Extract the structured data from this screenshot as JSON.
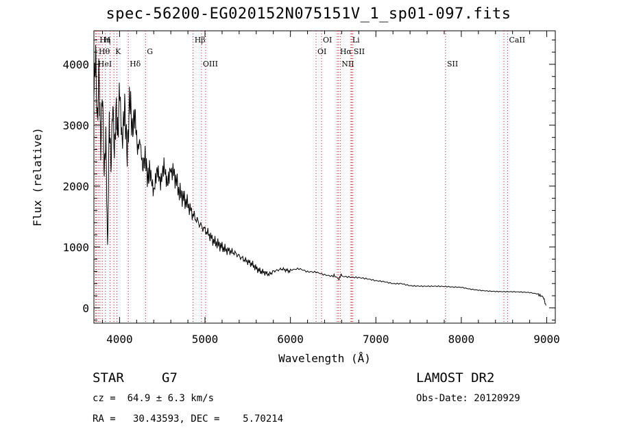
{
  "chart_data": {
    "type": "line",
    "title": "spec-56200-EG020152N075151V_1_sp01-097.fits",
    "xlabel": "Wavelength (Å)",
    "ylabel": "Flux (relative)",
    "xlim": [
      3700,
      9100
    ],
    "ylim": [
      -250,
      4550
    ],
    "x_ticks": [
      4000,
      5000,
      6000,
      7000,
      8000,
      9000
    ],
    "y_ticks": [
      0,
      1000,
      2000,
      3000,
      4000
    ],
    "series": [
      {
        "x": [
          3700,
          3720,
          3740,
          3760,
          3780,
          3800,
          3820,
          3840,
          3860,
          3880,
          3900,
          3920,
          3940,
          3960,
          3980,
          4000,
          4030,
          4060,
          4090,
          4120,
          4150,
          4180,
          4210,
          4240,
          4270,
          4300,
          4330,
          4360,
          4400,
          4440,
          4480,
          4520,
          4560,
          4600,
          4650,
          4700,
          4750,
          4800,
          4850,
          4900,
          4950,
          5000,
          5050,
          5100,
          5150,
          5200,
          5250,
          5300,
          5350,
          5400,
          5450,
          5500,
          5550,
          5600,
          5650,
          5700,
          5750,
          5800,
          5850,
          5900,
          5950,
          6000,
          6100,
          6200,
          6300,
          6400,
          6500,
          6563,
          6600,
          6700,
          6800,
          6900,
          7000,
          7100,
          7200,
          7300,
          7400,
          7500,
          7600,
          7700,
          7800,
          7900,
          8000,
          8100,
          8200,
          8300,
          8400,
          8500,
          8600,
          8700,
          8800,
          8900,
          8960,
          8990
        ],
        "y": [
          3500,
          4200,
          3000,
          3900,
          2600,
          3600,
          2200,
          2800,
          950,
          3100,
          2300,
          3400,
          2500,
          3300,
          2800,
          3600,
          2700,
          3300,
          2500,
          3500,
          2900,
          3200,
          2600,
          2750,
          2300,
          2500,
          2100,
          2300,
          1900,
          2200,
          2000,
          2400,
          2100,
          2300,
          2150,
          1900,
          1800,
          1700,
          1550,
          1450,
          1350,
          1280,
          1200,
          1100,
          1050,
          1000,
          950,
          930,
          900,
          850,
          800,
          760,
          720,
          650,
          600,
          580,
          550,
          600,
          620,
          640,
          620,
          600,
          620,
          580,
          590,
          560,
          540,
          480,
          540,
          510,
          490,
          460,
          430,
          420,
          400,
          410,
          380,
          370,
          360,
          350,
          340,
          330,
          330,
          310,
          300,
          290,
          280,
          270,
          260,
          250,
          240,
          220,
          180,
          40
        ]
      }
    ],
    "line_labels": [
      {
        "x": 3750,
        "text": "Hη",
        "row": 1
      },
      {
        "x": 3800,
        "text": "H",
        "row": 1
      },
      {
        "x": 4861,
        "text": "Hβ",
        "row": 1
      },
      {
        "x": 6364,
        "text": "OI",
        "row": 1
      },
      {
        "x": 6708,
        "text": "Li",
        "row": 1
      },
      {
        "x": 8542,
        "text": "CaII",
        "row": 1
      },
      {
        "x": 3740,
        "text": "Hθ",
        "row": 2
      },
      {
        "x": 3934,
        "text": "K",
        "row": 2
      },
      {
        "x": 4304,
        "text": "G",
        "row": 2
      },
      {
        "x": 6300,
        "text": "OI",
        "row": 2
      },
      {
        "x": 6563,
        "text": "Hα",
        "row": 2
      },
      {
        "x": 6724,
        "text": "SII",
        "row": 2
      },
      {
        "x": 3730,
        "text": "HeI",
        "row": 3
      },
      {
        "x": 4102,
        "text": "Hδ",
        "row": 3
      },
      {
        "x": 4959,
        "text": "OIII",
        "row": 3
      },
      {
        "x": 6583,
        "text": "NII",
        "row": 3
      },
      {
        "x": 7816,
        "text": "SII",
        "row": 3
      }
    ],
    "line_markers": [
      3722,
      3728,
      3750,
      3771,
      3798,
      3835,
      3889,
      3934,
      3970,
      4102,
      4304,
      4861,
      4959,
      5007,
      6300,
      6364,
      6548,
      6563,
      6583,
      6708,
      6717,
      6731,
      7816,
      8498,
      8542
    ],
    "line_marker_color": "#cc0000",
    "axes": {
      "grid": false,
      "legend": "none"
    }
  },
  "info": {
    "class": "STAR",
    "subclass": "G7",
    "survey": "LAMOST DR2",
    "redshift": "cz =  64.9 ± 6.3 km/s",
    "obs_date": "Obs-Date: 20120929",
    "coords": "RA =   30.43593, DEC =    5.70214"
  }
}
